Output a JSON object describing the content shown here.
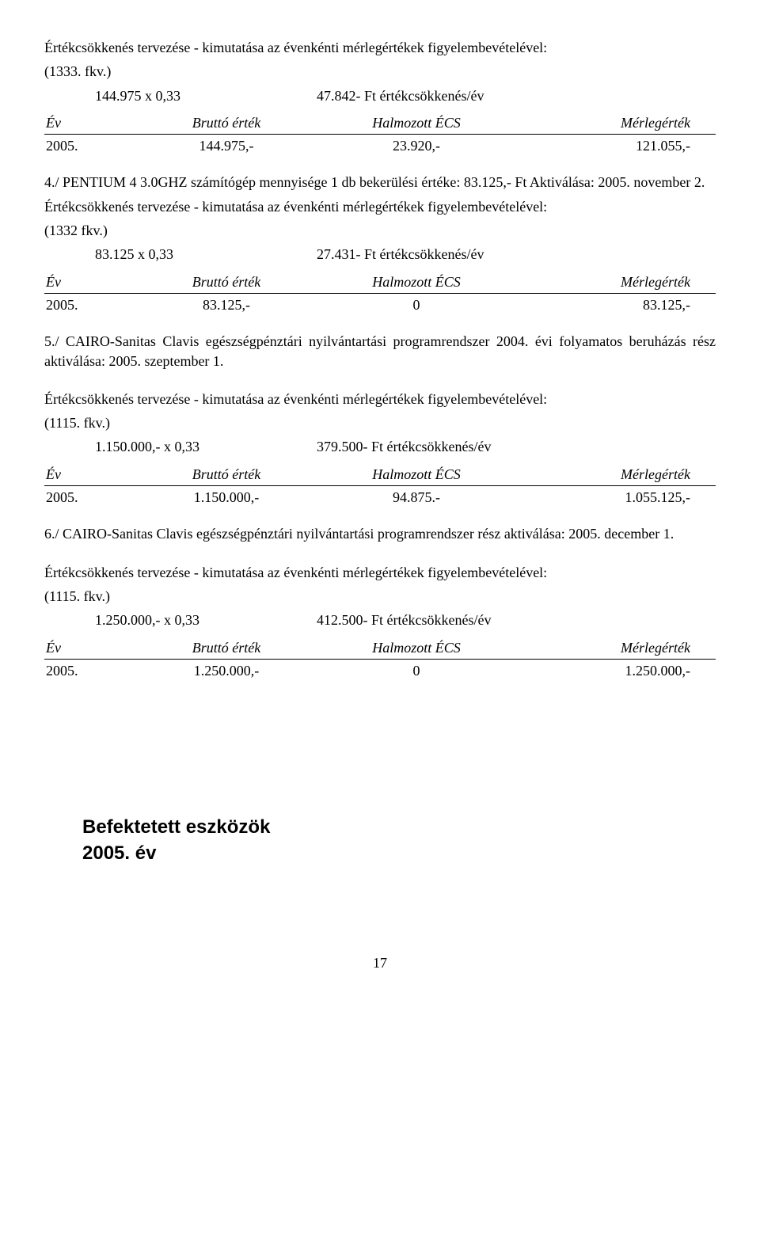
{
  "intro1": {
    "line1": "Értékcsökkenés tervezése - kimutatása az évenkénti mérlegértékek figyelembevételével:",
    "ref": "(1333. fkv.)",
    "calc_lhs": "144.975 x 0,33",
    "calc_rhs": "47.842- Ft értékcsökkenés/év"
  },
  "table_headers": {
    "c1": "Év",
    "c2": "Bruttó érték",
    "c3": "Halmozott ÉCS",
    "c4": "Mérlegérték"
  },
  "t1": {
    "c1": "2005.",
    "c2": "144.975,-",
    "c3": "23.920,-",
    "c4": "121.055,-"
  },
  "sec4": {
    "title": "4./ PENTIUM 4 3.0GHZ számítógép mennyisége 1 db bekerülési értéke: 83.125,- Ft Aktiválása: 2005. november 2.",
    "line1": "Értékcsökkenés tervezése - kimutatása az évenkénti mérlegértékek figyelembevételével:",
    "ref": "(1332 fkv.)",
    "calc_lhs": "83.125 x 0,33",
    "calc_rhs": "27.431- Ft értékcsökkenés/év"
  },
  "t2": {
    "c1": "2005.",
    "c2": "83.125,-",
    "c3": "0",
    "c4": "83.125,-"
  },
  "sec5": {
    "title": "5./ CAIRO-Sanitas Clavis egészségpénztári nyilvántartási programrendszer 2004. évi folyamatos beruházás rész aktiválása: 2005. szeptember 1.",
    "line1": "Értékcsökkenés tervezése - kimutatása az évenkénti mérlegértékek figyelembevételével:",
    "ref": "(1115. fkv.)",
    "calc_lhs": "1.150.000,- x 0,33",
    "calc_rhs": "379.500- Ft értékcsökkenés/év"
  },
  "t3": {
    "c1": "2005.",
    "c2": "1.150.000,-",
    "c3": "94.875.-",
    "c4": "1.055.125,-"
  },
  "sec6": {
    "title": "6./ CAIRO-Sanitas Clavis egészségpénztári nyilvántartási programrendszer rész aktiválása: 2005. december 1.",
    "line1": "Értékcsökkenés tervezése - kimutatása az évenkénti mérlegértékek figyelembevételével:",
    "ref": "(1115. fkv.)",
    "calc_lhs": "1.250.000,- x 0,33",
    "calc_rhs": "412.500- Ft értékcsökkenés/év"
  },
  "t4": {
    "c1": "2005.",
    "c2": "1.250.000,-",
    "c3": "0",
    "c4": "1.250.000,-"
  },
  "footer": {
    "l1": "Befektetett eszközök",
    "l2": "2005. év"
  },
  "pagenum": "17"
}
